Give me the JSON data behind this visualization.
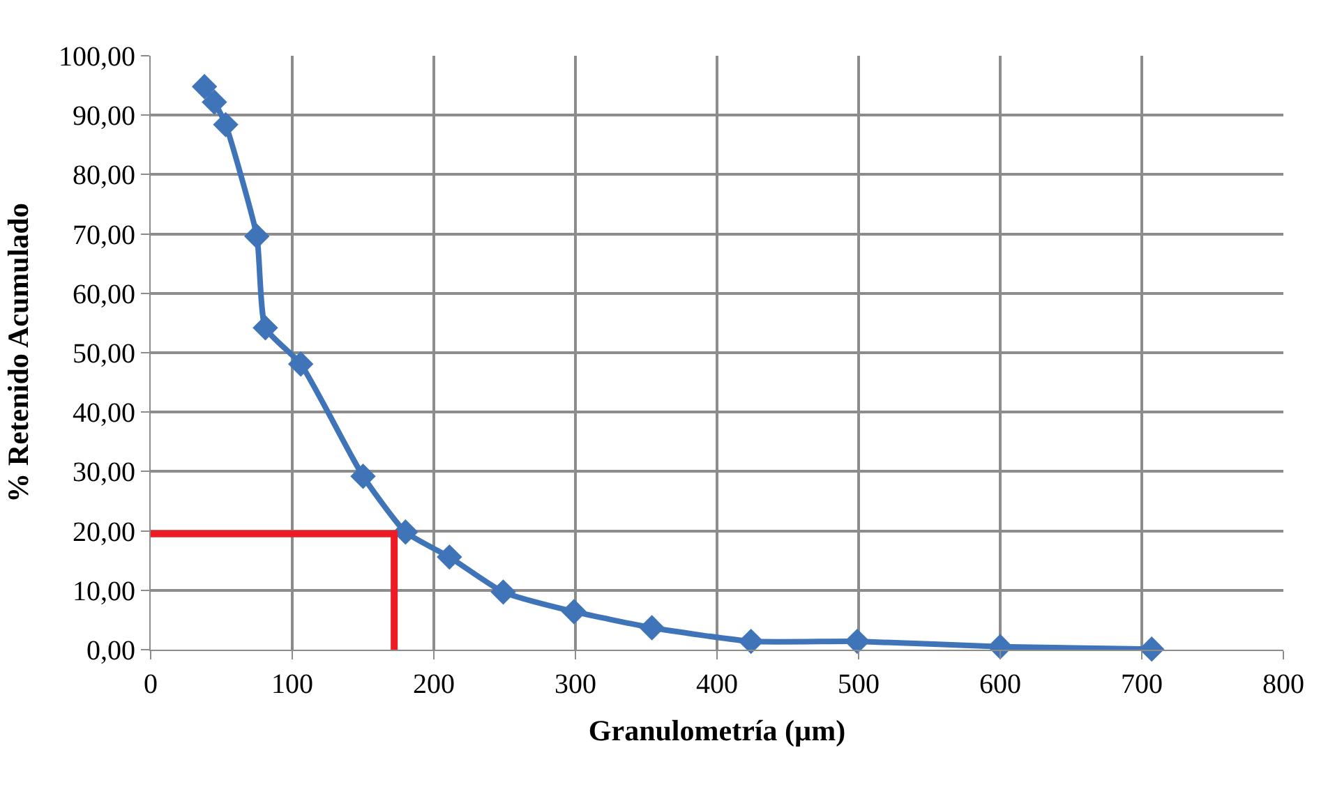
{
  "chart_data": {
    "type": "line",
    "xlabel": "Granulometría (µm)",
    "ylabel": "% Retenido Acumulado",
    "xlim": [
      0,
      800
    ],
    "xticks": [
      0,
      100,
      200,
      300,
      400,
      500,
      600,
      700,
      800
    ],
    "ylim": [
      0,
      100
    ],
    "yticks": [
      {
        "value": 0,
        "label": "0,00"
      },
      {
        "value": 10,
        "label": "10,00"
      },
      {
        "value": 20,
        "label": "20,00"
      },
      {
        "value": 30,
        "label": "30,00"
      },
      {
        "value": 40,
        "label": "40,00"
      },
      {
        "value": 50,
        "label": "50,00"
      },
      {
        "value": 60,
        "label": "60,00"
      },
      {
        "value": 70,
        "label": "70,00"
      },
      {
        "value": 80,
        "label": "80,00"
      },
      {
        "value": 90,
        "label": "90,00"
      },
      {
        "value": 100,
        "label": "100,00"
      }
    ],
    "grid": true,
    "series": [
      {
        "color": "#3f75b8",
        "marker": "diamond",
        "x": [
          38,
          45,
          53,
          75,
          81,
          106,
          150,
          180,
          211,
          249,
          299,
          354,
          424,
          499,
          600,
          707
        ],
        "values": [
          94.8,
          92.2,
          88.4,
          69.6,
          54.2,
          48.1,
          29.2,
          19.8,
          15.6,
          9.7,
          6.4,
          3.7,
          1.4,
          1.4,
          0.5,
          0.1
        ]
      },
      {
        "color": "#ed1c24",
        "marker": "none",
        "x": [
          0,
          172,
          172
        ],
        "values": [
          19.5,
          19.5,
          0
        ]
      }
    ]
  }
}
